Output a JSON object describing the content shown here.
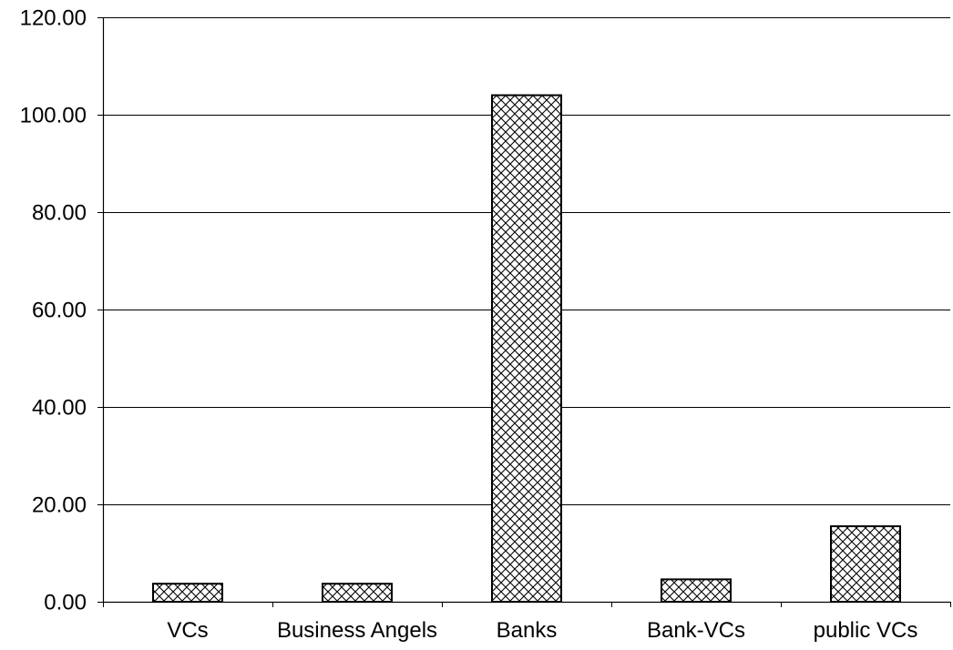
{
  "chart_data": {
    "type": "bar",
    "title": "",
    "xlabel": "",
    "ylabel": "",
    "categories": [
      "VCs",
      "Business Angels",
      "Banks",
      "Bank-VCs",
      "public VCs"
    ],
    "values": [
      3.7,
      3.7,
      104.0,
      4.6,
      15.5
    ],
    "ylim": [
      0,
      120
    ],
    "yticks": [
      0,
      20,
      40,
      60,
      80,
      100,
      120
    ],
    "ytick_labels": [
      "0.00",
      "20.00",
      "40.00",
      "60.00",
      "80.00",
      "100.00",
      "120.00"
    ],
    "grid": true,
    "legend": "none",
    "bar_fill_pattern": "crosshatch",
    "bar_color": "#000000",
    "background": "#ffffff"
  }
}
